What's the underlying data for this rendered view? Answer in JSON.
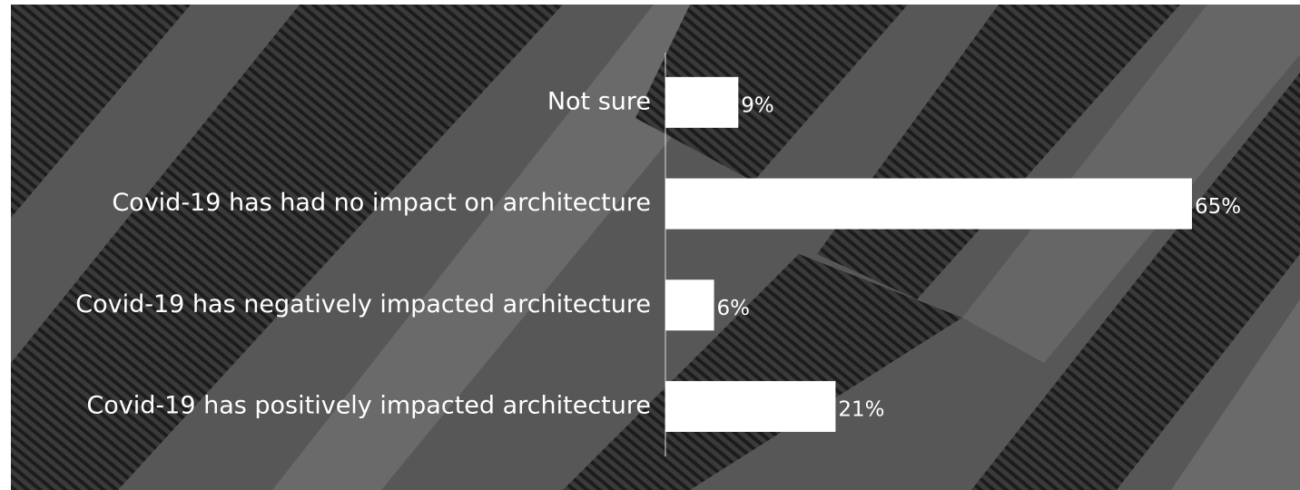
{
  "chart_data": {
    "type": "barh",
    "categories": [
      "Not sure",
      "Covid-19 has had no impact on architecture",
      "Covid-19 has negatively impacted architecture",
      "Covid-19 has positively impacted architecture"
    ],
    "values": [
      9,
      65,
      6,
      21
    ],
    "value_labels": [
      "9%",
      "65%",
      "6%",
      "21%"
    ],
    "color": "#ffffff"
  }
}
